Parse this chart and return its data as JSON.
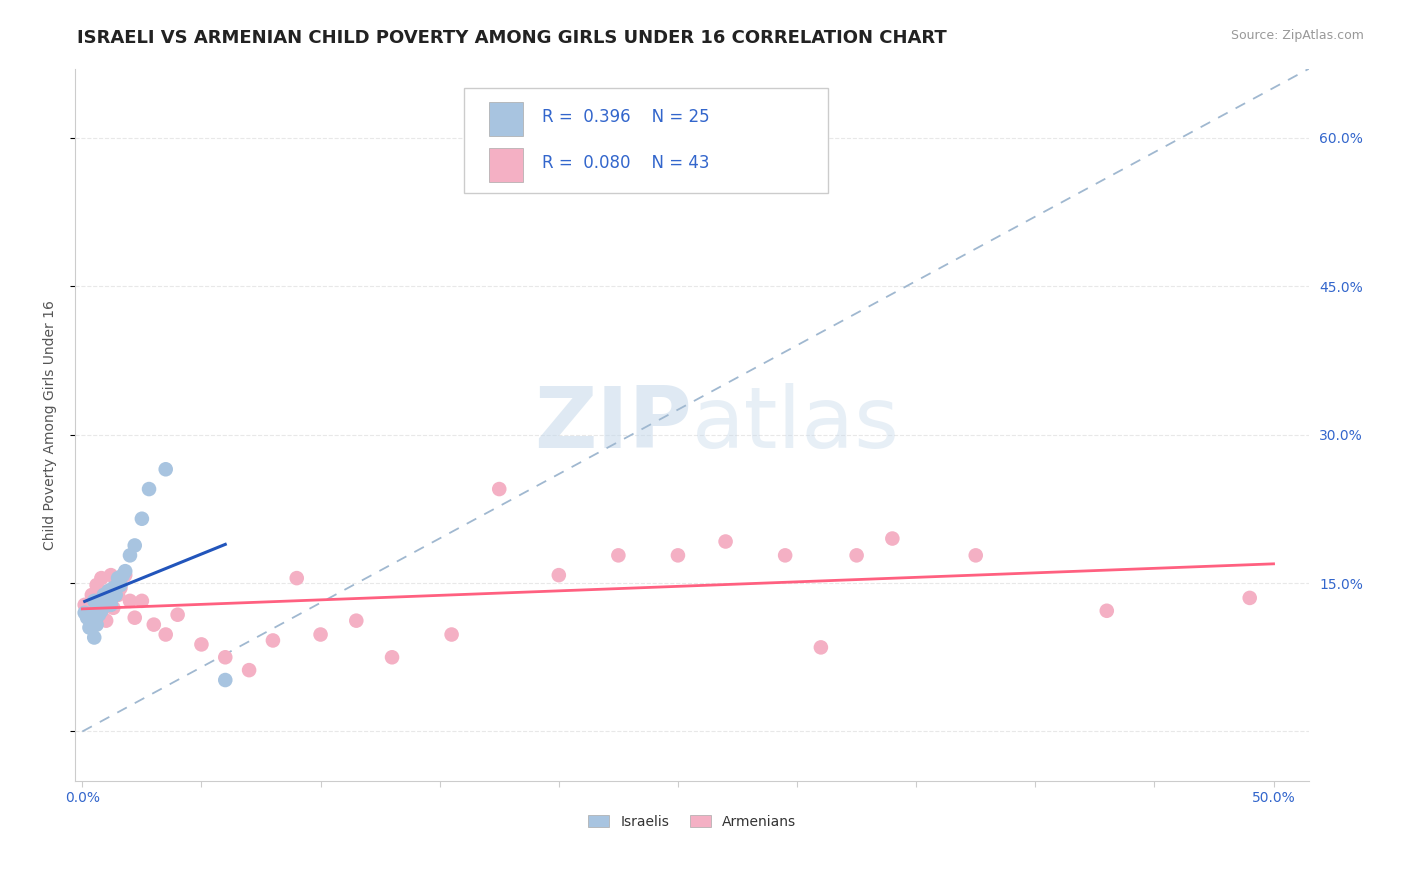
{
  "title": "ISRAELI VS ARMENIAN CHILD POVERTY AMONG GIRLS UNDER 16 CORRELATION CHART",
  "source": "Source: ZipAtlas.com",
  "ylabel": "Child Poverty Among Girls Under 16",
  "xlim": [
    -0.003,
    0.515
  ],
  "ylim": [
    -0.05,
    0.67
  ],
  "xtick_positions": [
    0.0,
    0.05,
    0.1,
    0.15,
    0.2,
    0.25,
    0.3,
    0.35,
    0.4,
    0.45,
    0.5
  ],
  "xticklabels": [
    "0.0%",
    "",
    "",
    "",
    "",
    "",
    "",
    "",
    "",
    "",
    "50.0%"
  ],
  "ytick_positions": [
    0.0,
    0.15,
    0.3,
    0.45,
    0.6
  ],
  "ytick_labels_right": [
    "",
    "15.0%",
    "30.0%",
    "45.0%",
    "60.0%"
  ],
  "israeli_x": [
    0.001,
    0.002,
    0.003,
    0.004,
    0.005,
    0.005,
    0.006,
    0.007,
    0.008,
    0.009,
    0.01,
    0.011,
    0.012,
    0.013,
    0.014,
    0.015,
    0.016,
    0.017,
    0.018,
    0.02,
    0.022,
    0.025,
    0.028,
    0.035,
    0.06
  ],
  "israeli_y": [
    0.12,
    0.115,
    0.105,
    0.118,
    0.095,
    0.132,
    0.108,
    0.118,
    0.122,
    0.138,
    0.13,
    0.142,
    0.128,
    0.145,
    0.138,
    0.155,
    0.148,
    0.158,
    0.162,
    0.178,
    0.188,
    0.215,
    0.245,
    0.265,
    0.052
  ],
  "armenian_x": [
    0.001,
    0.003,
    0.004,
    0.005,
    0.006,
    0.007,
    0.008,
    0.009,
    0.01,
    0.011,
    0.012,
    0.013,
    0.014,
    0.015,
    0.016,
    0.018,
    0.02,
    0.022,
    0.025,
    0.03,
    0.035,
    0.04,
    0.05,
    0.06,
    0.07,
    0.08,
    0.09,
    0.1,
    0.115,
    0.13,
    0.155,
    0.175,
    0.2,
    0.225,
    0.25,
    0.27,
    0.295,
    0.31,
    0.325,
    0.34,
    0.375,
    0.43,
    0.49
  ],
  "armenian_y": [
    0.128,
    0.118,
    0.138,
    0.115,
    0.148,
    0.138,
    0.155,
    0.125,
    0.112,
    0.142,
    0.158,
    0.125,
    0.148,
    0.138,
    0.145,
    0.158,
    0.132,
    0.115,
    0.132,
    0.108,
    0.098,
    0.118,
    0.088,
    0.075,
    0.062,
    0.092,
    0.155,
    0.098,
    0.112,
    0.075,
    0.098,
    0.245,
    0.158,
    0.178,
    0.178,
    0.192,
    0.178,
    0.085,
    0.178,
    0.195,
    0.178,
    0.122,
    0.135
  ],
  "israeli_color": "#a8c4e0",
  "armenian_color": "#f4b0c4",
  "israeli_line_color": "#2255bb",
  "armenian_line_color": "#ff6080",
  "israeli_R": 0.396,
  "israeli_N": 25,
  "armenian_R": 0.08,
  "armenian_N": 43,
  "watermark_zip": "ZIP",
  "watermark_atlas": "atlas",
  "legend_label_israeli": "Israelis",
  "legend_label_armenian": "Armenians",
  "background_color": "#ffffff",
  "grid_color": "#e8e8e8",
  "title_fontsize": 13,
  "axis_label_fontsize": 10,
  "tick_fontsize": 10,
  "legend_fontsize": 12,
  "dashed_line_x": [
    0.0,
    0.515
  ],
  "dashed_line_y": [
    0.0,
    0.67
  ]
}
